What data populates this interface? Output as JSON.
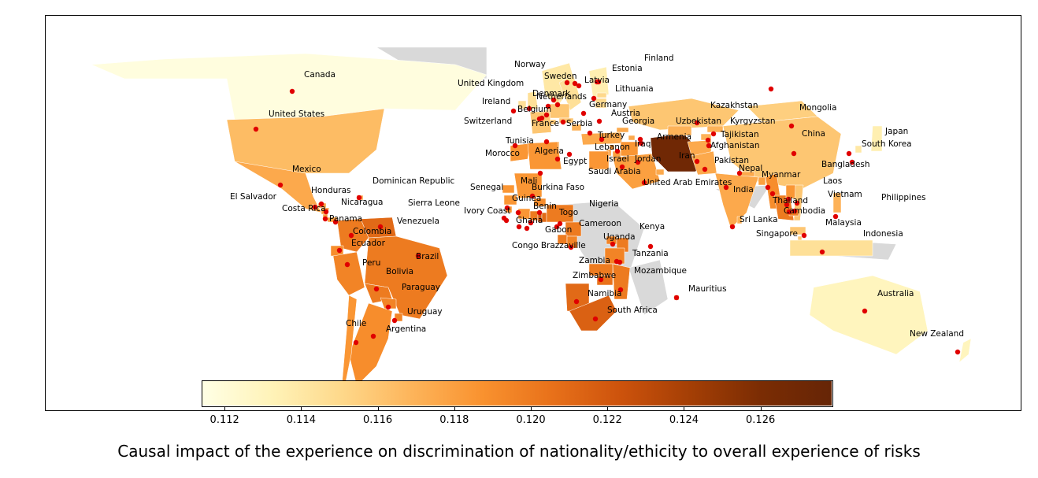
{
  "caption": "Causal impact of the experience on discrimination of nationality/ethicity to overall experience of risks",
  "colors": {
    "no_data": "#d9d9d9",
    "marker": "#e00000",
    "scale": [
      "#ffffe5",
      "#fff3b8",
      "#fed88a",
      "#fdb45a",
      "#f9922f",
      "#e8711a",
      "#cc520c",
      "#a33e05",
      "#7a2c04",
      "#662506"
    ]
  },
  "colorbar": {
    "min": 0.1114,
    "max": 0.1279,
    "ticks": [
      "0.112",
      "0.114",
      "0.116",
      "0.118",
      "0.120",
      "0.122",
      "0.124",
      "0.126"
    ]
  },
  "countries": [
    {
      "name": "Canada",
      "value": 0.1117
    },
    {
      "name": "United States",
      "value": 0.1165
    },
    {
      "name": "Mexico",
      "value": 0.1175
    },
    {
      "name": "El Salvador",
      "value": 0.1185
    },
    {
      "name": "Honduras",
      "value": 0.118
    },
    {
      "name": "Nicaragua",
      "value": 0.1182
    },
    {
      "name": "Costa Rica",
      "value": 0.1182
    },
    {
      "name": "Panama",
      "value": 0.118
    },
    {
      "name": "Dominican Republic",
      "value": 0.1175
    },
    {
      "name": "Venezuela",
      "value": 0.121
    },
    {
      "name": "Colombia",
      "value": 0.12
    },
    {
      "name": "Ecuador",
      "value": 0.119
    },
    {
      "name": "Peru",
      "value": 0.1195
    },
    {
      "name": "Brazil",
      "value": 0.12
    },
    {
      "name": "Bolivia",
      "value": 0.12
    },
    {
      "name": "Paraguay",
      "value": 0.1195
    },
    {
      "name": "Uruguay",
      "value": 0.1195
    },
    {
      "name": "Argentina",
      "value": 0.119
    },
    {
      "name": "Chile",
      "value": 0.1185
    },
    {
      "name": "Norway",
      "value": 0.114
    },
    {
      "name": "Sweden",
      "value": 0.1145
    },
    {
      "name": "Finland",
      "value": 0.1135
    },
    {
      "name": "Estonia",
      "value": 0.115
    },
    {
      "name": "Latvia",
      "value": 0.115
    },
    {
      "name": "Lithuania",
      "value": 0.115
    },
    {
      "name": "United Kingdom",
      "value": 0.1145
    },
    {
      "name": "Denmark",
      "value": 0.115
    },
    {
      "name": "Netherlands",
      "value": 0.115
    },
    {
      "name": "Ireland",
      "value": 0.1145
    },
    {
      "name": "Belgium",
      "value": 0.1155
    },
    {
      "name": "Germany",
      "value": 0.116
    },
    {
      "name": "Austria",
      "value": 0.116
    },
    {
      "name": "Switzerland",
      "value": 0.116
    },
    {
      "name": "France",
      "value": 0.116
    },
    {
      "name": "Serbia",
      "value": 0.117
    },
    {
      "name": "Georgia",
      "value": 0.1175
    },
    {
      "name": "Turkey",
      "value": 0.1175
    },
    {
      "name": "Armenia",
      "value": 0.1175
    },
    {
      "name": "Lebanon",
      "value": 0.1185
    },
    {
      "name": "Iraq",
      "value": 0.1185
    },
    {
      "name": "Israel",
      "value": 0.118
    },
    {
      "name": "Jordan",
      "value": 0.118
    },
    {
      "name": "Saudi Arabia",
      "value": 0.118
    },
    {
      "name": "United Arab Emirates",
      "value": 0.1175
    },
    {
      "name": "Iran",
      "value": 0.127
    },
    {
      "name": "Kazakhstan",
      "value": 0.116
    },
    {
      "name": "Uzbekistan",
      "value": 0.117
    },
    {
      "name": "Kyrgyzstan",
      "value": 0.117
    },
    {
      "name": "Tajikistan",
      "value": 0.117
    },
    {
      "name": "Afghanistan",
      "value": 0.1175
    },
    {
      "name": "Pakistan",
      "value": 0.1175
    },
    {
      "name": "Mongolia",
      "value": 0.1155
    },
    {
      "name": "China",
      "value": 0.116
    },
    {
      "name": "Japan",
      "value": 0.1135
    },
    {
      "name": "South Korea",
      "value": 0.114
    },
    {
      "name": "Nepal",
      "value": 0.1175
    },
    {
      "name": "India",
      "value": 0.1175
    },
    {
      "name": "Bangladesh",
      "value": 0.118
    },
    {
      "name": "Myanmar",
      "value": 0.119
    },
    {
      "name": "Thailand",
      "value": 0.12
    },
    {
      "name": "Laos",
      "value": 0.1185
    },
    {
      "name": "Vietnam",
      "value": 0.116
    },
    {
      "name": "Cambodia",
      "value": 0.1195
    },
    {
      "name": "Philippines",
      "value": 0.117
    },
    {
      "name": "Malaysia",
      "value": 0.116
    },
    {
      "name": "Singapore",
      "value": 0.116
    },
    {
      "name": "Indonesia",
      "value": 0.1145
    },
    {
      "name": "Sri Lanka",
      "value": 0.117
    },
    {
      "name": "Australia",
      "value": 0.113
    },
    {
      "name": "New Zealand",
      "value": 0.113
    },
    {
      "name": "Tunisia",
      "value": 0.1175
    },
    {
      "name": "Morocco",
      "value": 0.1185
    },
    {
      "name": "Algeria",
      "value": 0.1185
    },
    {
      "name": "Egypt",
      "value": 0.1185
    },
    {
      "name": "Senegal",
      "value": 0.1185
    },
    {
      "name": "Mali",
      "value": 0.1185
    },
    {
      "name": "Burkina Faso",
      "value": 0.119
    },
    {
      "name": "Guinea",
      "value": 0.1185
    },
    {
      "name": "Sierra Leone",
      "value": 0.1185
    },
    {
      "name": "Ivory Coast",
      "value": 0.1185
    },
    {
      "name": "Ghana",
      "value": 0.12
    },
    {
      "name": "Togo",
      "value": 0.122
    },
    {
      "name": "Benin",
      "value": 0.121
    },
    {
      "name": "Nigeria",
      "value": 0.12
    },
    {
      "name": "Cameroon",
      "value": 0.12
    },
    {
      "name": "Gabon",
      "value": 0.12
    },
    {
      "name": "Congo Brazzaville",
      "value": 0.1195
    },
    {
      "name": "Uganda",
      "value": 0.1195
    },
    {
      "name": "Kenya",
      "value": 0.12
    },
    {
      "name": "Tanzania",
      "value": 0.1195
    },
    {
      "name": "Zambia",
      "value": 0.12
    },
    {
      "name": "Zimbabwe",
      "value": 0.1205
    },
    {
      "name": "Mozambique",
      "value": 0.12
    },
    {
      "name": "Namibia",
      "value": 0.121
    },
    {
      "name": "South Africa",
      "value": 0.1215
    },
    {
      "name": "Mauritius",
      "value": 0.119
    }
  ]
}
